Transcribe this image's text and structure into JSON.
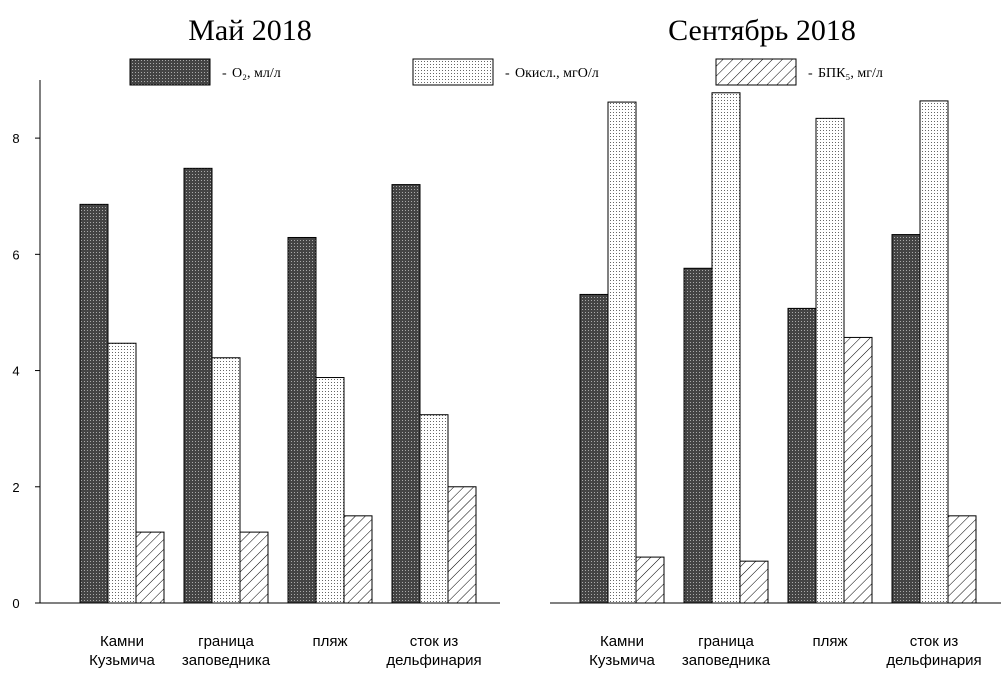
{
  "chart_data": [
    {
      "type": "bar",
      "title": "Май 2018",
      "categories": [
        "Камни\nКузьмича",
        "граница\nзаповедника",
        "пляж",
        "сток из\nдельфинария"
      ],
      "series": [
        {
          "name": "O₂, мл/л",
          "color": "#555555",
          "pattern": "dots-dark",
          "values": [
            6.86,
            7.48,
            6.29,
            7.2
          ]
        },
        {
          "name": "Окисл., мгО/л",
          "color": "#ffffff",
          "pattern": "dots-light",
          "values": [
            4.47,
            4.22,
            3.88,
            3.24
          ]
        },
        {
          "name": "БПК₅, мг/л",
          "color": "#ffffff",
          "pattern": "hatch",
          "values": [
            1.22,
            1.22,
            1.5,
            2.0
          ]
        }
      ],
      "ylim": [
        0,
        9
      ],
      "yticks": [
        0,
        2,
        4,
        6,
        8
      ]
    },
    {
      "type": "bar",
      "title": "Сентябрь 2018",
      "categories": [
        "Камни\nКузьмича",
        "граница\nзаповедника",
        "пляж",
        "сток из\nдельфинария"
      ],
      "series": [
        {
          "color": "#555555",
          "pattern": "dots-dark",
          "values": [
            5.31,
            5.76,
            5.07,
            6.34
          ]
        },
        {
          "color": "#ffffff",
          "pattern": "dots-light",
          "values": [
            8.62,
            8.78,
            8.34,
            8.64
          ]
        },
        {
          "color": "#ffffff",
          "pattern": "hatch",
          "values": [
            0.79,
            0.72,
            4.57,
            1.5
          ]
        }
      ],
      "ylim": [
        0,
        9
      ]
    }
  ]
}
